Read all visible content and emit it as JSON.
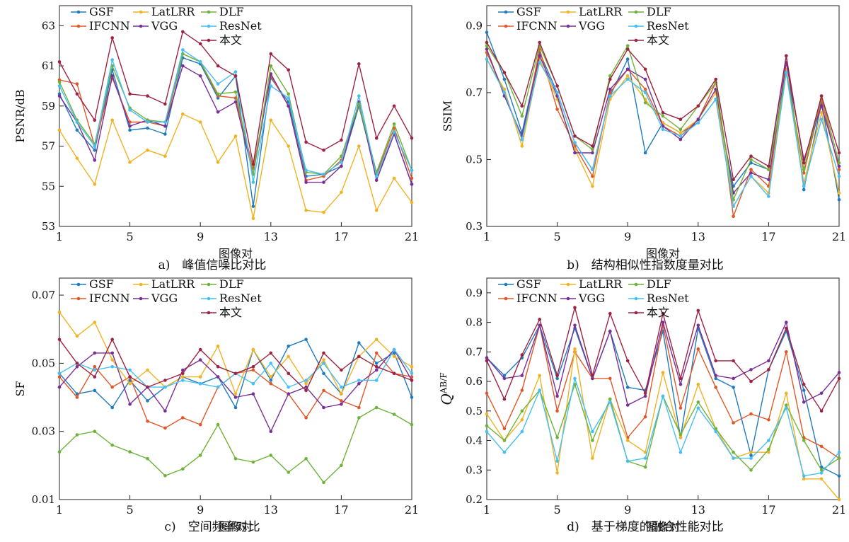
{
  "figure": {
    "legend_labels": [
      "GSF",
      "IFCNN",
      "LatLRR",
      "VGG",
      "DLF",
      "ResNet",
      "本文"
    ],
    "colors": {
      "GSF": "#1f7bbf",
      "IFCNN": "#e0582a",
      "LatLRR": "#f0b323",
      "VGG": "#7a2f96",
      "DLF": "#6fb23a",
      "ResNet": "#47bff0",
      "本文": "#9e2342"
    }
  },
  "chart_data": [
    {
      "type": "line",
      "caption": "a)　峰值信噪比对比",
      "xlabel": "图像对",
      "ylabel": "PSNR/dB",
      "xlim": [
        1,
        21
      ],
      "xticks": [
        1,
        5,
        9,
        13,
        17,
        21
      ],
      "ylim": [
        53,
        64
      ],
      "yticks": [
        53,
        55,
        57,
        59,
        61,
        63
      ],
      "x": [
        1,
        2,
        3,
        4,
        5,
        6,
        7,
        8,
        9,
        10,
        11,
        12,
        13,
        14,
        15,
        16,
        17,
        18,
        19,
        20,
        21
      ],
      "series": [
        {
          "name": "GSF",
          "values": [
            59.6,
            57.8,
            56.8,
            60.8,
            57.8,
            57.9,
            57.6,
            61.4,
            61.1,
            59.4,
            60.5,
            54.0,
            60.4,
            59.2,
            55.5,
            55.6,
            56.0,
            59.0,
            55.5,
            57.6,
            55.1
          ]
        },
        {
          "name": "IFCNN",
          "values": [
            60.3,
            60.1,
            57.0,
            60.4,
            58.2,
            58.2,
            58.0,
            61.6,
            61.2,
            59.5,
            59.4,
            55.9,
            60.5,
            59.0,
            55.3,
            55.5,
            56.3,
            59.1,
            55.6,
            57.9,
            55.4
          ]
        },
        {
          "name": "LatLRR",
          "values": [
            57.8,
            56.4,
            55.1,
            58.3,
            56.2,
            56.8,
            56.5,
            58.6,
            58.2,
            56.2,
            57.5,
            53.4,
            58.3,
            57.0,
            53.8,
            53.7,
            54.7,
            57.0,
            53.8,
            55.4,
            54.2
          ]
        },
        {
          "name": "VGG",
          "values": [
            59.5,
            58.2,
            56.3,
            60.5,
            58.0,
            58.3,
            58.0,
            61.0,
            60.5,
            58.7,
            59.2,
            55.6,
            60.6,
            59.0,
            55.2,
            55.2,
            56.0,
            59.2,
            55.3,
            57.6,
            55.1
          ]
        },
        {
          "name": "DLF",
          "values": [
            60.2,
            58.3,
            57.1,
            61.0,
            58.9,
            58.3,
            58.2,
            61.6,
            61.2,
            59.6,
            59.7,
            55.6,
            61.0,
            59.6,
            55.7,
            55.6,
            56.5,
            59.1,
            55.7,
            58.1,
            55.8
          ]
        },
        {
          "name": "ResNet",
          "values": [
            60.0,
            58.2,
            57.0,
            61.3,
            58.8,
            58.2,
            58.2,
            61.8,
            61.2,
            60.1,
            60.7,
            55.2,
            60.0,
            59.4,
            55.8,
            55.6,
            56.2,
            59.5,
            55.5,
            57.7,
            55.8
          ]
        },
        {
          "name": "本文",
          "values": [
            61.2,
            59.6,
            58.3,
            62.4,
            59.6,
            59.5,
            59.1,
            62.7,
            62.1,
            61.0,
            60.5,
            56.1,
            61.6,
            60.8,
            57.2,
            56.8,
            57.3,
            61.1,
            57.4,
            59.0,
            57.4
          ]
        }
      ]
    },
    {
      "type": "line",
      "caption": "b)　结构相似性指数度量对比",
      "xlabel": "图像对",
      "ylabel": "SSIM",
      "xlim": [
        1,
        21
      ],
      "xticks": [
        1,
        5,
        9,
        13,
        17,
        21
      ],
      "ylim": [
        0.3,
        0.96
      ],
      "yticks": [
        0.3,
        0.5,
        0.7,
        0.9
      ],
      "x": [
        1,
        2,
        3,
        4,
        5,
        6,
        7,
        8,
        9,
        10,
        11,
        12,
        13,
        14,
        15,
        16,
        17,
        18,
        19,
        20,
        21
      ],
      "series": [
        {
          "name": "GSF",
          "values": [
            0.88,
            0.74,
            0.58,
            0.82,
            0.7,
            0.55,
            0.47,
            0.69,
            0.8,
            0.52,
            0.61,
            0.58,
            0.61,
            0.68,
            0.42,
            0.49,
            0.47,
            0.81,
            0.41,
            0.67,
            0.38
          ]
        },
        {
          "name": "IFCNN",
          "values": [
            0.82,
            0.7,
            0.56,
            0.83,
            0.65,
            0.54,
            0.45,
            0.7,
            0.77,
            0.71,
            0.6,
            0.57,
            0.62,
            0.73,
            0.33,
            0.47,
            0.42,
            0.77,
            0.46,
            0.68,
            0.47
          ]
        },
        {
          "name": "LatLRR",
          "values": [
            0.8,
            0.71,
            0.54,
            0.8,
            0.68,
            0.53,
            0.42,
            0.68,
            0.75,
            0.68,
            0.61,
            0.58,
            0.62,
            0.7,
            0.36,
            0.45,
            0.4,
            0.77,
            0.43,
            0.64,
            0.4
          ]
        },
        {
          "name": "VGG",
          "values": [
            0.83,
            0.69,
            0.57,
            0.81,
            0.69,
            0.52,
            0.52,
            0.71,
            0.77,
            0.74,
            0.6,
            0.56,
            0.62,
            0.71,
            0.4,
            0.46,
            0.44,
            0.79,
            0.5,
            0.66,
            0.48
          ]
        },
        {
          "name": "DLF",
          "values": [
            0.84,
            0.76,
            0.63,
            0.84,
            0.72,
            0.57,
            0.53,
            0.75,
            0.84,
            0.67,
            0.63,
            0.59,
            0.66,
            0.73,
            0.38,
            0.5,
            0.47,
            0.76,
            0.47,
            0.69,
            0.49
          ]
        },
        {
          "name": "ResNet",
          "values": [
            0.8,
            0.7,
            0.56,
            0.79,
            0.7,
            0.55,
            0.47,
            0.69,
            0.74,
            0.7,
            0.59,
            0.57,
            0.61,
            0.68,
            0.36,
            0.45,
            0.39,
            0.76,
            0.42,
            0.62,
            0.45
          ]
        },
        {
          "name": "本文",
          "values": [
            0.85,
            0.76,
            0.66,
            0.85,
            0.72,
            0.57,
            0.54,
            0.74,
            0.83,
            0.77,
            0.64,
            0.62,
            0.66,
            0.74,
            0.44,
            0.51,
            0.48,
            0.81,
            0.49,
            0.69,
            0.52
          ]
        }
      ]
    },
    {
      "type": "line",
      "caption": "c)　空间频率对比",
      "xlabel": "图像对",
      "ylabel": "SF",
      "xlim": [
        1,
        21
      ],
      "xticks": [
        1,
        5,
        9,
        13,
        17,
        21
      ],
      "ylim": [
        0.01,
        0.075
      ],
      "yticks": [
        0.01,
        0.03,
        0.05,
        0.07
      ],
      "x": [
        1,
        2,
        3,
        4,
        5,
        6,
        7,
        8,
        9,
        10,
        11,
        12,
        13,
        14,
        15,
        16,
        17,
        18,
        19,
        20,
        21
      ],
      "series": [
        {
          "name": "GSF",
          "values": [
            0.047,
            0.041,
            0.042,
            0.037,
            0.045,
            0.039,
            0.043,
            0.046,
            0.044,
            0.046,
            0.037,
            0.054,
            0.045,
            0.055,
            0.057,
            0.047,
            0.041,
            0.056,
            0.05,
            0.053,
            0.04
          ]
        },
        {
          "name": "IFCNN",
          "values": [
            0.046,
            0.04,
            0.049,
            0.043,
            0.046,
            0.033,
            0.031,
            0.034,
            0.032,
            0.043,
            0.047,
            0.048,
            0.044,
            0.041,
            0.034,
            0.042,
            0.039,
            0.037,
            0.053,
            0.047,
            0.046
          ]
        },
        {
          "name": "LatLRR",
          "values": [
            0.065,
            0.058,
            0.062,
            0.051,
            0.044,
            0.048,
            0.043,
            0.046,
            0.046,
            0.055,
            0.041,
            0.054,
            0.046,
            0.052,
            0.044,
            0.051,
            0.041,
            0.052,
            0.057,
            0.052,
            0.049
          ]
        },
        {
          "name": "VGG",
          "values": [
            0.043,
            0.049,
            0.053,
            0.053,
            0.038,
            0.043,
            0.036,
            0.048,
            0.051,
            0.046,
            0.04,
            0.041,
            0.03,
            0.041,
            0.043,
            0.037,
            0.038,
            0.044,
            0.048,
            0.054,
            0.045
          ]
        },
        {
          "name": "DLF",
          "values": [
            0.024,
            0.029,
            0.03,
            0.026,
            0.024,
            0.022,
            0.017,
            0.019,
            0.023,
            0.032,
            0.022,
            0.021,
            0.023,
            0.018,
            0.022,
            0.015,
            0.02,
            0.034,
            0.037,
            0.035,
            0.032
          ]
        },
        {
          "name": "ResNet",
          "values": [
            0.047,
            0.05,
            0.048,
            0.049,
            0.048,
            0.043,
            0.043,
            0.045,
            0.044,
            0.043,
            0.047,
            0.044,
            0.05,
            0.043,
            0.045,
            0.05,
            0.043,
            0.045,
            0.045,
            0.054,
            0.047
          ]
        },
        {
          "name": "本文",
          "values": [
            0.057,
            0.05,
            0.046,
            0.057,
            0.046,
            0.043,
            0.045,
            0.047,
            0.054,
            0.049,
            0.047,
            0.049,
            0.053,
            0.047,
            0.042,
            0.053,
            0.048,
            0.052,
            0.049,
            0.047,
            0.045
          ]
        }
      ]
    },
    {
      "type": "line",
      "caption": "d)　基于梯度的融合性能对比",
      "xlabel": "图像对",
      "ylabel": "Q^AB/F",
      "xlim": [
        1,
        21
      ],
      "xticks": [
        1,
        5,
        9,
        13,
        17,
        21
      ],
      "ylim": [
        0.2,
        0.95
      ],
      "yticks": [
        0.2,
        0.3,
        0.4,
        0.5,
        0.6,
        0.7,
        0.8,
        0.9
      ],
      "x": [
        1,
        2,
        3,
        4,
        5,
        6,
        7,
        8,
        9,
        10,
        11,
        12,
        13,
        14,
        15,
        16,
        17,
        18,
        19,
        20,
        21
      ],
      "series": [
        {
          "name": "GSF",
          "values": [
            0.68,
            0.62,
            0.68,
            0.79,
            0.61,
            0.78,
            0.61,
            0.77,
            0.58,
            0.57,
            0.77,
            0.41,
            0.78,
            0.61,
            0.58,
            0.35,
            0.64,
            0.77,
            0.57,
            0.31,
            0.28
          ]
        },
        {
          "name": "IFCNN",
          "values": [
            0.56,
            0.44,
            0.57,
            0.79,
            0.5,
            0.7,
            0.61,
            0.61,
            0.41,
            0.48,
            0.79,
            0.51,
            0.71,
            0.58,
            0.46,
            0.49,
            0.47,
            0.7,
            0.41,
            0.38,
            0.34
          ]
        },
        {
          "name": "LatLRR",
          "values": [
            0.49,
            0.4,
            0.47,
            0.62,
            0.29,
            0.71,
            0.34,
            0.54,
            0.4,
            0.36,
            0.63,
            0.41,
            0.59,
            0.44,
            0.34,
            0.36,
            0.36,
            0.56,
            0.27,
            0.27,
            0.2
          ]
        },
        {
          "name": "VGG",
          "values": [
            0.68,
            0.61,
            0.62,
            0.79,
            0.55,
            0.79,
            0.61,
            0.77,
            0.52,
            0.55,
            0.8,
            0.59,
            0.79,
            0.62,
            0.61,
            0.64,
            0.67,
            0.8,
            0.53,
            0.56,
            0.63
          ]
        },
        {
          "name": "DLF",
          "values": [
            0.45,
            0.4,
            0.5,
            0.57,
            0.41,
            0.59,
            0.4,
            0.54,
            0.33,
            0.31,
            0.55,
            0.42,
            0.53,
            0.44,
            0.36,
            0.3,
            0.37,
            0.52,
            0.4,
            0.3,
            0.34
          ]
        },
        {
          "name": "ResNet",
          "values": [
            0.43,
            0.36,
            0.43,
            0.57,
            0.33,
            0.61,
            0.43,
            0.53,
            0.33,
            0.34,
            0.55,
            0.36,
            0.51,
            0.43,
            0.34,
            0.34,
            0.4,
            0.51,
            0.28,
            0.29,
            0.36
          ]
        },
        {
          "name": "本文",
          "values": [
            0.67,
            0.54,
            0.69,
            0.81,
            0.62,
            0.85,
            0.62,
            0.83,
            0.67,
            0.56,
            0.83,
            0.61,
            0.84,
            0.67,
            0.67,
            0.6,
            0.64,
            0.78,
            0.59,
            0.5,
            0.61
          ]
        }
      ]
    }
  ]
}
